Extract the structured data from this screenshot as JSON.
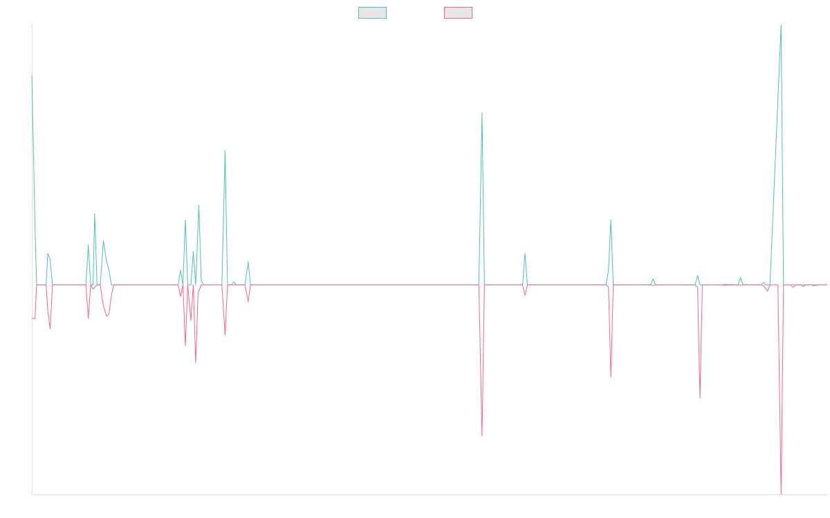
{
  "chart_data": {
    "type": "line",
    "title": "",
    "xlabel": "",
    "ylabel": "",
    "x_range": [
      0,
      1000
    ],
    "ylim": [
      -1.0,
      1.24
    ],
    "grid": false,
    "legend_placement": "top-center",
    "series": [
      {
        "label": "",
        "color": "#4bc0c0",
        "fill": "#e6e6e6",
        "points": [
          [
            0,
            1.0
          ],
          [
            4,
            0.28
          ],
          [
            6,
            0
          ],
          [
            18,
            0
          ],
          [
            20,
            0.15
          ],
          [
            23,
            0.12
          ],
          [
            26,
            0
          ],
          [
            28,
            0
          ],
          [
            68,
            0
          ],
          [
            71,
            0.19
          ],
          [
            74,
            0
          ],
          [
            77,
            0
          ],
          [
            79,
            0.34
          ],
          [
            82,
            0
          ],
          [
            86,
            0
          ],
          [
            90,
            0.21
          ],
          [
            94,
            0.11
          ],
          [
            97,
            0.07
          ],
          [
            100,
            0
          ],
          [
            103,
            0
          ],
          [
            184,
            0
          ],
          [
            187,
            0.07
          ],
          [
            190,
            0
          ],
          [
            193,
            0.31
          ],
          [
            196,
            0
          ],
          [
            200,
            0
          ],
          [
            203,
            0.16
          ],
          [
            206,
            0
          ],
          [
            210,
            0.38
          ],
          [
            213,
            0.02
          ],
          [
            216,
            0
          ],
          [
            239,
            0
          ],
          [
            243,
            0.64
          ],
          [
            246,
            0
          ],
          [
            251,
            0
          ],
          [
            254,
            0.015
          ],
          [
            257,
            0
          ],
          [
            268,
            0
          ],
          [
            272,
            0.11
          ],
          [
            275,
            0
          ],
          [
            562,
            0
          ],
          [
            566,
            0.82
          ],
          [
            569,
            0
          ],
          [
            617,
            0
          ],
          [
            620,
            0.15
          ],
          [
            623,
            0
          ],
          [
            722,
            0
          ],
          [
            725,
            0.07
          ],
          [
            728,
            0.31
          ],
          [
            731,
            0
          ],
          [
            778,
            0
          ],
          [
            781,
            0.028
          ],
          [
            784,
            0
          ],
          [
            834,
            0
          ],
          [
            837,
            0.045
          ],
          [
            840,
            0
          ],
          [
            867,
            0
          ],
          [
            870,
            0.002
          ],
          [
            888,
            0
          ],
          [
            891,
            0.035
          ],
          [
            894,
            0
          ],
          [
            897,
            0.002
          ],
          [
            900,
            0
          ],
          [
            917,
            0
          ],
          [
            920,
            0.012
          ],
          [
            923,
            0
          ],
          [
            928,
            0
          ],
          [
            942,
            1.24
          ],
          [
            945,
            0
          ],
          [
            1000,
            0
          ]
        ]
      },
      {
        "label": "",
        "color": "#ff6384",
        "fill": "#e6e6e6",
        "points": [
          [
            0,
            -0.16
          ],
          [
            4,
            -0.16
          ],
          [
            6,
            0
          ],
          [
            18,
            0
          ],
          [
            20,
            -0.12
          ],
          [
            23,
            -0.21
          ],
          [
            26,
            0
          ],
          [
            68,
            0
          ],
          [
            71,
            -0.16
          ],
          [
            74,
            0
          ],
          [
            77,
            -0.02
          ],
          [
            82,
            0
          ],
          [
            86,
            0
          ],
          [
            90,
            -0.1
          ],
          [
            94,
            -0.15
          ],
          [
            97,
            -0.14
          ],
          [
            100,
            -0.05
          ],
          [
            103,
            0
          ],
          [
            184,
            0
          ],
          [
            187,
            -0.055
          ],
          [
            190,
            0
          ],
          [
            193,
            -0.29
          ],
          [
            196,
            0
          ],
          [
            200,
            -0.17
          ],
          [
            203,
            0
          ],
          [
            206,
            -0.37
          ],
          [
            209,
            -0.04
          ],
          [
            213,
            0
          ],
          [
            239,
            0
          ],
          [
            243,
            -0.24
          ],
          [
            246,
            0
          ],
          [
            268,
            0
          ],
          [
            272,
            -0.08
          ],
          [
            275,
            0
          ],
          [
            562,
            0
          ],
          [
            566,
            -0.72
          ],
          [
            569,
            0
          ],
          [
            617,
            0
          ],
          [
            620,
            -0.05
          ],
          [
            623,
            0
          ],
          [
            722,
            0
          ],
          [
            725,
            -0.01
          ],
          [
            728,
            -0.44
          ],
          [
            731,
            0
          ],
          [
            778,
            0
          ],
          [
            781,
            -0.003
          ],
          [
            784,
            0
          ],
          [
            834,
            0
          ],
          [
            837,
            -0.012
          ],
          [
            840,
            -0.54
          ],
          [
            843,
            0
          ],
          [
            867,
            0
          ],
          [
            870,
            -0.002
          ],
          [
            888,
            0
          ],
          [
            891,
            -0.002
          ],
          [
            894,
            0
          ],
          [
            917,
            0
          ],
          [
            920,
            -0.005
          ],
          [
            925,
            -0.03
          ],
          [
            928,
            0
          ],
          [
            938,
            0
          ],
          [
            942,
            -1.0
          ],
          [
            945,
            0
          ],
          [
            954,
            0
          ],
          [
            957,
            -0.012
          ],
          [
            960,
            0
          ],
          [
            967,
            0
          ],
          [
            970,
            -0.008
          ],
          [
            973,
            0
          ],
          [
            980,
            0
          ],
          [
            983,
            -0.004
          ],
          [
            990,
            0
          ],
          [
            1000,
            0
          ]
        ]
      }
    ]
  }
}
